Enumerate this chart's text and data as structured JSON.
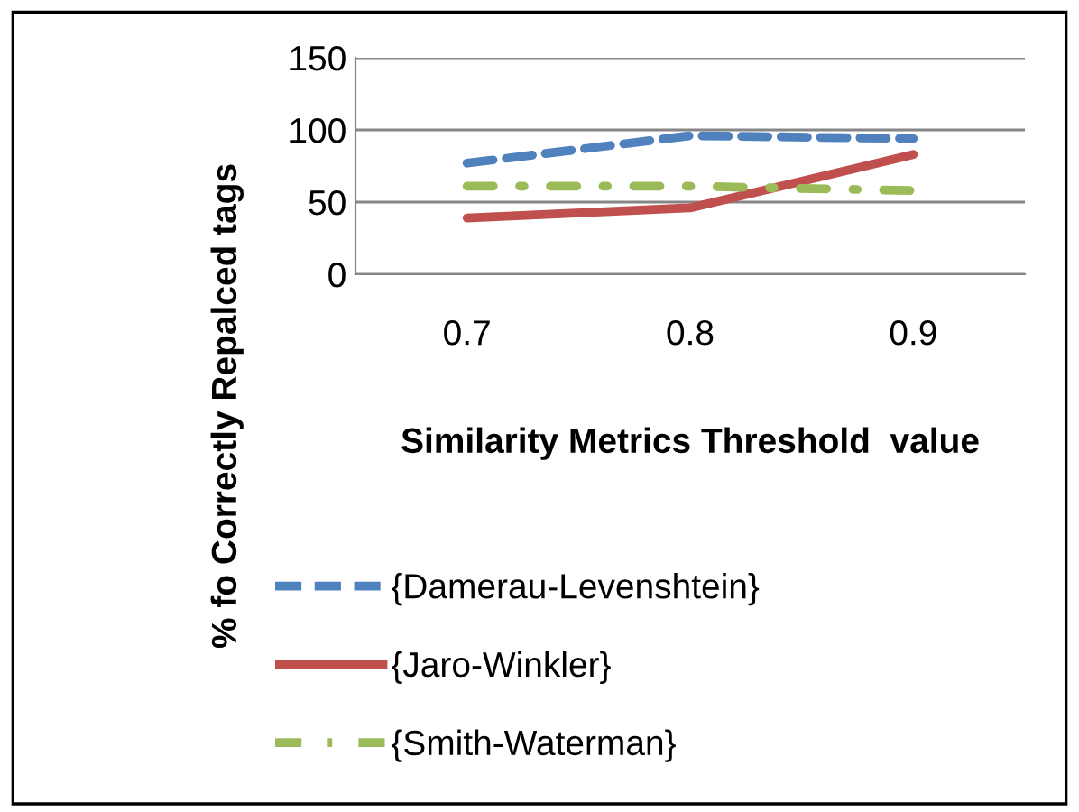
{
  "chart_data": {
    "type": "line",
    "xlabel": "Similarity Metrics Threshold  value",
    "ylabel": "% fo Correctly Repalced tags",
    "categories": [
      "0.7",
      "0.8",
      "0.9"
    ],
    "series": [
      {
        "name": "{Damerau-Levenshtein}",
        "color": "#4f81bd",
        "line_style": "dashed",
        "values": [
          77,
          96,
          94
        ]
      },
      {
        "name": "{Jaro-Winkler}",
        "color": "#c0504d",
        "line_style": "solid",
        "values": [
          39,
          46,
          83
        ]
      },
      {
        "name": "{Smith-Waterman}",
        "color": "#9bbb59",
        "line_style": "dashdot",
        "values": [
          61,
          61,
          58
        ]
      }
    ],
    "ylim": [
      0,
      150
    ],
    "yticks": [
      0,
      50,
      100,
      150
    ],
    "grid": "y",
    "legend": "bottom",
    "marker": "none"
  }
}
